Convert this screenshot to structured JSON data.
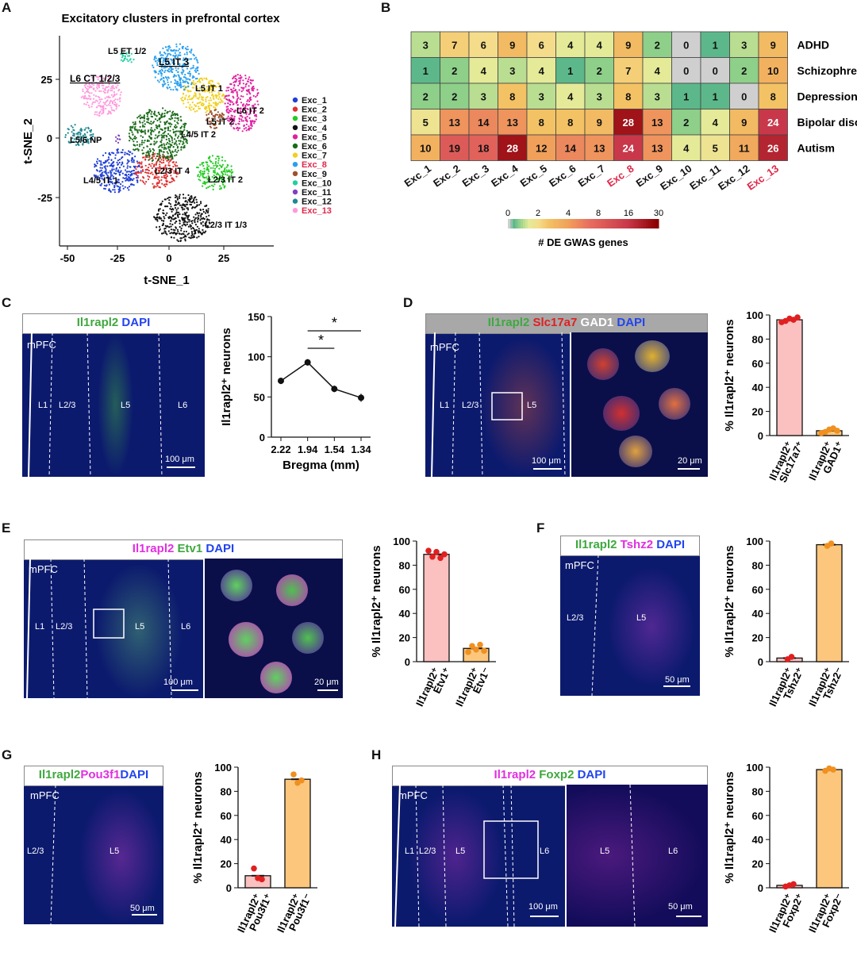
{
  "panels": {
    "A": "A",
    "B": "B",
    "C": "C",
    "D": "D",
    "E": "E",
    "F": "F",
    "G": "G",
    "H": "H"
  },
  "tsne": {
    "title": "Excitatory clusters in prefrontal cortex",
    "xlabel": "t-SNE_1",
    "ylabel": "t-SNE_2",
    "xticks": [
      "-50",
      "-25",
      "0",
      "25"
    ],
    "yticks": [
      "25",
      "0",
      "-25"
    ],
    "cluster_labels": [
      {
        "text": "L5 ET 1/2",
        "underline": false
      },
      {
        "text": "L5 IT 3",
        "underline": true
      },
      {
        "text": "L6 CT 1/2/3",
        "underline": true
      },
      {
        "text": "L5 IT 1",
        "underline": false
      },
      {
        "text": "L6 IT 2",
        "underline": false
      },
      {
        "text": "L5 IT 2",
        "underline": false
      },
      {
        "text": "L4/5 IT 2",
        "underline": false
      },
      {
        "text": "L5/6 NP",
        "underline": false
      },
      {
        "text": "L4/5 IT 1",
        "underline": false
      },
      {
        "text": "L2/3 IT 4",
        "underline": false
      },
      {
        "text": "L2/3 IT 2",
        "underline": false
      },
      {
        "text": "L2/3 IT 1/3",
        "underline": false
      }
    ],
    "legend": [
      {
        "name": "Exc_1",
        "color": "#1f3fd6",
        "highlight": false
      },
      {
        "name": "Exc_2",
        "color": "#e03030",
        "highlight": false
      },
      {
        "name": "Exc_3",
        "color": "#22cc22",
        "highlight": false
      },
      {
        "name": "Exc_4",
        "color": "#111111",
        "highlight": false
      },
      {
        "name": "Exc_5",
        "color": "#e020a0",
        "highlight": false
      },
      {
        "name": "Exc_6",
        "color": "#1a6b1a",
        "highlight": false
      },
      {
        "name": "Exc_7",
        "color": "#f0d020",
        "highlight": false
      },
      {
        "name": "Exc_8",
        "color": "#2aa0ee",
        "highlight": true
      },
      {
        "name": "Exc_9",
        "color": "#a0522d",
        "highlight": false
      },
      {
        "name": "Exc_10",
        "color": "#20d0a0",
        "highlight": false
      },
      {
        "name": "Exc_11",
        "color": "#8040c0",
        "highlight": false
      },
      {
        "name": "Exc_12",
        "color": "#208890",
        "highlight": false
      },
      {
        "name": "Exc_13",
        "color": "#ff99dd",
        "highlight": true
      }
    ]
  },
  "chart_data": [
    {
      "type": "heatmap",
      "rows": [
        "ADHD",
        "Schizophrenia",
        "Depression",
        "Bipolar disorder",
        "Autism"
      ],
      "columns": [
        "Exc_1",
        "Exc_2",
        "Exc_3",
        "Exc_4",
        "Exc_5",
        "Exc_6",
        "Exc_7",
        "Exc_8",
        "Exc_9",
        "Exc_10",
        "Exc_11",
        "Exc_12",
        "Exc_13"
      ],
      "highlight_columns": [
        "Exc_8",
        "Exc_13"
      ],
      "values": [
        [
          3,
          7,
          6,
          9,
          6,
          4,
          4,
          9,
          2,
          0,
          1,
          3,
          9
        ],
        [
          1,
          2,
          4,
          3,
          4,
          1,
          2,
          7,
          4,
          0,
          0,
          2,
          10
        ],
        [
          2,
          2,
          3,
          8,
          3,
          4,
          3,
          8,
          3,
          1,
          1,
          0,
          8
        ],
        [
          5,
          13,
          14,
          13,
          8,
          8,
          9,
          28,
          13,
          2,
          4,
          9,
          24
        ],
        [
          10,
          19,
          18,
          28,
          12,
          14,
          13,
          24,
          13,
          4,
          5,
          11,
          26
        ]
      ],
      "colorbar_ticks": [
        "0",
        "2",
        "4",
        "8",
        "16",
        "30"
      ],
      "colorbar_label": "# DE GWAS genes"
    },
    {
      "type": "line",
      "x": [
        "2.22",
        "1.94",
        "1.54",
        "1.34"
      ],
      "y": [
        70,
        93,
        60,
        49
      ],
      "err": [
        4,
        4,
        4,
        5
      ],
      "xlabel": "Bregma (mm)",
      "ylabel": "Il1rapl2⁺ neurons",
      "yticks": [
        "0",
        "50",
        "100",
        "150"
      ],
      "ylim": [
        0,
        150
      ],
      "sig": [
        {
          "from": "1.94",
          "to": "1.54",
          "text": "*"
        },
        {
          "from": "1.94",
          "to": "1.34",
          "text": "*"
        }
      ]
    },
    {
      "type": "bar",
      "categories": [
        "Il1rapl2⁺ Slc17a7⁺",
        "Il1rapl2⁺ GAD1⁺"
      ],
      "values": [
        96,
        4
      ],
      "points": [
        [
          94,
          95,
          97,
          96,
          98
        ],
        [
          2,
          3,
          5,
          6,
          4
        ]
      ],
      "ylabel": "% Il1rapl2⁺ neurons",
      "ylim": [
        0,
        100
      ],
      "yticks": [
        "0",
        "20",
        "40",
        "60",
        "80",
        "100"
      ]
    },
    {
      "type": "bar",
      "categories": [
        "Il1rapl2⁺ Etv1⁺",
        "Il1rapl2⁺ Etv1⁻"
      ],
      "values": [
        89,
        11
      ],
      "points": [
        [
          92,
          87,
          91,
          86,
          89
        ],
        [
          8,
          13,
          10,
          14,
          9
        ]
      ],
      "ylabel": "% Il1rapl2⁺ neurons",
      "ylim": [
        0,
        100
      ],
      "yticks": [
        "0",
        "20",
        "40",
        "60",
        "80",
        "100"
      ]
    },
    {
      "type": "bar",
      "categories": [
        "Il1rapl2⁺ Tshz2⁺",
        "Il1rapl2⁺ Tshz2⁻"
      ],
      "values": [
        3,
        97
      ],
      "points": [
        [
          2,
          4
        ],
        [
          96,
          98
        ]
      ],
      "ylabel": "% Il1rapl2⁺ neurons",
      "ylim": [
        0,
        100
      ],
      "yticks": [
        "0",
        "20",
        "40",
        "60",
        "80",
        "100"
      ]
    },
    {
      "type": "bar",
      "categories": [
        "Il1rapl2⁺ Pou3f1⁺",
        "Il1rapl2⁺ Pou3f1⁻"
      ],
      "values": [
        10,
        90
      ],
      "points": [
        [
          16,
          8,
          7
        ],
        [
          94,
          87,
          89
        ]
      ],
      "ylabel": "% Il1rapl2⁺ neurons",
      "ylim": [
        0,
        100
      ],
      "yticks": [
        "0",
        "20",
        "40",
        "60",
        "80",
        "100"
      ]
    },
    {
      "type": "bar",
      "categories": [
        "Il1rapl2⁺ Foxp2⁺",
        "Il1rapl2⁺ Foxp2⁻"
      ],
      "values": [
        2,
        98
      ],
      "points": [
        [
          1,
          2,
          3
        ],
        [
          97,
          99,
          98
        ]
      ],
      "ylabel": "% Il1rapl2⁺ neurons",
      "ylim": [
        0,
        100
      ],
      "yticks": [
        "0",
        "20",
        "40",
        "60",
        "80",
        "100"
      ]
    }
  ],
  "micrographs": {
    "C": {
      "header": [
        {
          "t": "Il1rapl2",
          "c": "#3fa83f"
        },
        {
          "t": " DAPI",
          "c": "#2244ee"
        }
      ],
      "region": "mPFC",
      "layers": [
        "L1",
        "L2/3",
        "L5",
        "L6"
      ],
      "scale": "100 μm"
    },
    "D": {
      "header": [
        {
          "t": "Il1rapl2",
          "c": "#3fa83f"
        },
        {
          "t": " Slc17a7",
          "c": "#e02020"
        },
        {
          "t": " GAD1",
          "c": "#ffffff"
        },
        {
          "t": " DAPI",
          "c": "#2244ee"
        }
      ],
      "region": "mPFC",
      "layers": [
        "L1",
        "L2/3",
        "L5"
      ],
      "scale": "100 μm",
      "zoom_scale": "20 μm"
    },
    "E": {
      "header": [
        {
          "t": "Il1rapl2",
          "c": "#e030e0"
        },
        {
          "t": " Etv1",
          "c": "#3fa83f"
        },
        {
          "t": " DAPI",
          "c": "#2244ee"
        }
      ],
      "region": "mPFC",
      "layers": [
        "L1",
        "L2/3",
        "L5",
        "L6"
      ],
      "scale": "100 μm",
      "zoom_scale": "20 μm"
    },
    "F": {
      "header": [
        {
          "t": "Il1rapl2",
          "c": "#3fa83f"
        },
        {
          "t": " Tshz2",
          "c": "#e030e0"
        },
        {
          "t": " DAPI",
          "c": "#2244ee"
        }
      ],
      "region": "mPFC",
      "layers": [
        "L2/3",
        "L5"
      ],
      "scale": "50 μm"
    },
    "G": {
      "header": [
        {
          "t": "Il1rapl2",
          "c": "#3fa83f"
        },
        {
          "t": "Pou3f1",
          "c": "#e030e0"
        },
        {
          "t": "DAPI",
          "c": "#2244ee"
        }
      ],
      "region": "mPFC",
      "layers": [
        "L2/3",
        "L5"
      ],
      "scale": "50 μm"
    },
    "H": {
      "header": [
        {
          "t": "Il1rapl2",
          "c": "#e030e0"
        },
        {
          "t": " Foxp2",
          "c": "#3fa83f"
        },
        {
          "t": " DAPI",
          "c": "#2244ee"
        }
      ],
      "region": "mPFC",
      "layers": [
        "L1",
        "L2/3",
        "L5",
        "L6"
      ],
      "zoom_layers": [
        "L5",
        "L6"
      ],
      "scale": "100 μm",
      "zoom_scale": "50 μm"
    }
  }
}
